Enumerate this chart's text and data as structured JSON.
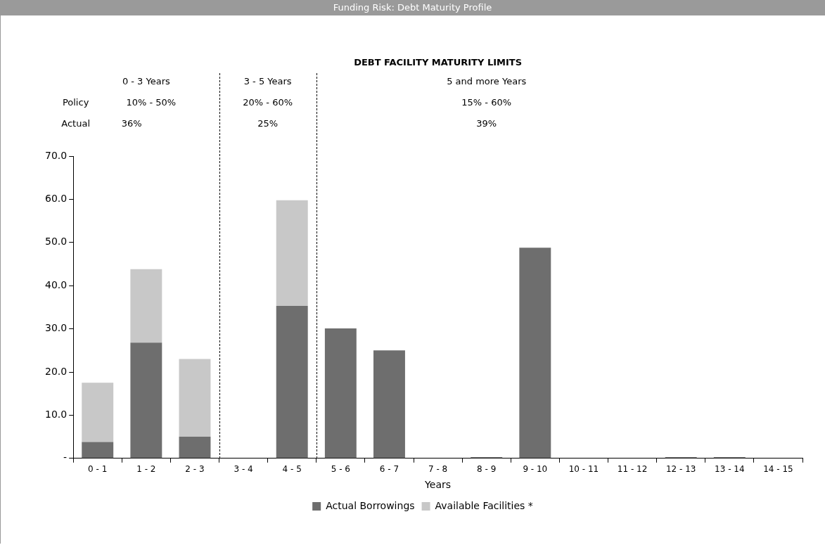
{
  "chart_data": {
    "type": "bar",
    "title": "Funding Risk: Debt Maturity Profile",
    "subtitle": "DEBT FACILITY MATURITY LIMITS",
    "xlabel": "Years",
    "categories": [
      "0 - 1",
      "1 - 2",
      "2 - 3",
      "3 - 4",
      "4 - 5",
      "5 - 6",
      "6 - 7",
      "7 - 8",
      "8 - 9",
      "9 - 10",
      "10 - 11",
      "11 - 12",
      "12 - 13",
      "13 - 14",
      "14 - 15"
    ],
    "series": [
      {
        "name": "Actual Borrowings",
        "color": "#6e6e6e",
        "values": [
          3.8,
          26.8,
          5,
          0,
          35.3,
          30.1,
          25,
          0,
          0.3,
          48.8,
          0,
          0,
          0.3,
          0.3,
          0
        ]
      },
      {
        "name": "Available Facilities *",
        "color": "#c8c8c8",
        "values": [
          13.7,
          17,
          18,
          0,
          24.5,
          0,
          0,
          0,
          0,
          0,
          0,
          0,
          0,
          0,
          0
        ]
      }
    ],
    "stacked": true,
    "ylim": [
      0,
      70
    ],
    "yticks": [
      {
        "value": 0,
        "label": "-"
      },
      {
        "value": 10,
        "label": "10.0"
      },
      {
        "value": 20,
        "label": "20.0"
      },
      {
        "value": 30,
        "label": "30.0"
      },
      {
        "value": 40,
        "label": "40.0"
      },
      {
        "value": 50,
        "label": "50.0"
      },
      {
        "value": 60,
        "label": "60.0"
      },
      {
        "value": 70,
        "label": "70.0"
      }
    ],
    "annotations": [
      "0 - 3 Years",
      "3 - 5 Years",
      "5 and more Years",
      "Policy",
      "10% - 50%",
      "20% - 60%",
      "15% - 60%",
      "Actual",
      "36%",
      "25%",
      "39%"
    ],
    "grid": false,
    "legend": "bottom"
  }
}
